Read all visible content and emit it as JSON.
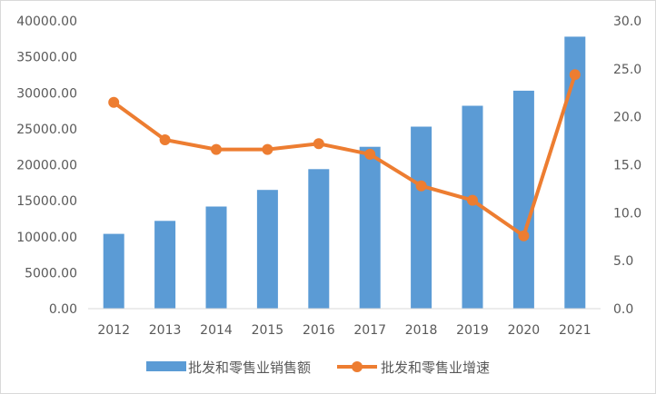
{
  "chart_data": {
    "type": "bar",
    "title": "",
    "categories": [
      "2012",
      "2013",
      "2014",
      "2015",
      "2016",
      "2017",
      "2018",
      "2019",
      "2020",
      "2021"
    ],
    "series": [
      {
        "name": "批发和零售业销售额",
        "type": "bar",
        "axis": "left",
        "color": "#5b9bd5",
        "values": [
          10400,
          12200,
          14200,
          16500,
          19400,
          22500,
          25300,
          28200,
          30300,
          37800
        ]
      },
      {
        "name": "批发和零售业增速",
        "type": "line",
        "axis": "right",
        "color": "#ed7d31",
        "values": [
          21.5,
          17.6,
          16.6,
          16.6,
          17.2,
          16.1,
          12.8,
          11.3,
          7.6,
          24.4
        ]
      }
    ],
    "y_left": {
      "ylim": [
        0,
        40000
      ],
      "ticks": [
        "0.00",
        "5000.00",
        "10000.00",
        "15000.00",
        "20000.00",
        "25000.00",
        "30000.00",
        "35000.00",
        "40000.00"
      ]
    },
    "y_right": {
      "ylim": [
        0,
        30
      ],
      "ticks": [
        "0.0",
        "5.0",
        "10.0",
        "15.0",
        "20.0",
        "25.0",
        "30.0"
      ]
    },
    "grid": false,
    "legend_position": "bottom"
  }
}
